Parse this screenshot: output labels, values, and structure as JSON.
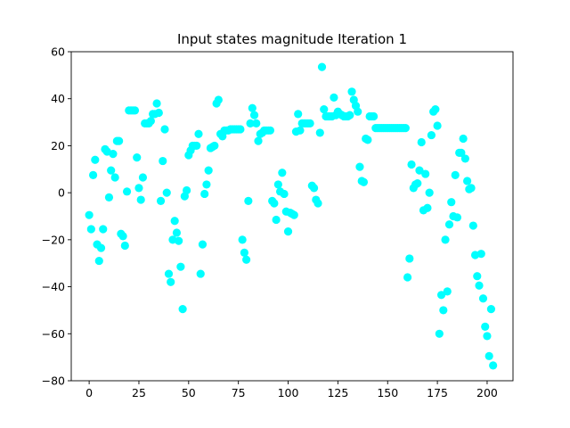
{
  "chart_data": {
    "type": "scatter",
    "title": "Input states magnitude Iteration 1",
    "xlabel": "",
    "ylabel": "",
    "xlim": [
      -9,
      213
    ],
    "ylim": [
      -80,
      60
    ],
    "xticks": [
      0,
      25,
      50,
      75,
      100,
      125,
      150,
      175,
      200
    ],
    "yticks": [
      -80,
      -60,
      -40,
      -20,
      0,
      20,
      40,
      60
    ],
    "grid": false,
    "marker_color": "#00ffff",
    "points": [
      [
        0,
        -9.5
      ],
      [
        1,
        -15.5
      ],
      [
        2,
        7.5
      ],
      [
        3,
        14
      ],
      [
        4,
        -22
      ],
      [
        5,
        -29
      ],
      [
        6,
        -23.5
      ],
      [
        7,
        -15.5
      ],
      [
        8,
        18.5
      ],
      [
        9,
        17.5
      ],
      [
        10,
        -2
      ],
      [
        11,
        9.5
      ],
      [
        12,
        16.5
      ],
      [
        13,
        6.5
      ],
      [
        14,
        22
      ],
      [
        15,
        22
      ],
      [
        16,
        -17.5
      ],
      [
        17,
        -18.5
      ],
      [
        18,
        -22.5
      ],
      [
        19,
        0.5
      ],
      [
        20,
        35
      ],
      [
        21,
        35
      ],
      [
        22,
        35
      ],
      [
        23,
        35
      ],
      [
        24,
        15
      ],
      [
        25,
        2
      ],
      [
        26,
        -3
      ],
      [
        27,
        6.5
      ],
      [
        28,
        29.5
      ],
      [
        29,
        29.5
      ],
      [
        30,
        29.5
      ],
      [
        31,
        30.5
      ],
      [
        32,
        33.5
      ],
      [
        33,
        33.5
      ],
      [
        34,
        38
      ],
      [
        35,
        34
      ],
      [
        36,
        -3.5
      ],
      [
        37,
        13.5
      ],
      [
        38,
        27
      ],
      [
        39,
        0
      ],
      [
        40,
        -34.5
      ],
      [
        41,
        -38
      ],
      [
        42,
        -20
      ],
      [
        43,
        -12
      ],
      [
        44,
        -17
      ],
      [
        45,
        -20.5
      ],
      [
        46,
        -31.5
      ],
      [
        47,
        -49.5
      ],
      [
        48,
        -1.5
      ],
      [
        49,
        1
      ],
      [
        50,
        16
      ],
      [
        51,
        18
      ],
      [
        52,
        20
      ],
      [
        53,
        20
      ],
      [
        54,
        20
      ],
      [
        55,
        25
      ],
      [
        56,
        -34.5
      ],
      [
        57,
        -22
      ],
      [
        58,
        -0.5
      ],
      [
        59,
        3.5
      ],
      [
        60,
        9.5
      ],
      [
        61,
        19
      ],
      [
        62,
        19.5
      ],
      [
        63,
        20
      ],
      [
        64,
        38
      ],
      [
        65,
        39.5
      ],
      [
        66,
        25
      ],
      [
        67,
        24
      ],
      [
        68,
        26.5
      ],
      [
        69,
        26.5
      ],
      [
        70,
        26.5
      ],
      [
        71,
        27
      ],
      [
        72,
        27
      ],
      [
        73,
        27
      ],
      [
        74,
        27
      ],
      [
        75,
        27
      ],
      [
        76,
        27
      ],
      [
        77,
        -20
      ],
      [
        78,
        -25.5
      ],
      [
        79,
        -28.5
      ],
      [
        80,
        -3.5
      ],
      [
        81,
        29.5
      ],
      [
        82,
        36
      ],
      [
        83,
        33
      ],
      [
        84,
        29.5
      ],
      [
        85,
        22
      ],
      [
        86,
        25
      ],
      [
        87,
        25.5
      ],
      [
        88,
        26.5
      ],
      [
        89,
        26.5
      ],
      [
        90,
        26.5
      ],
      [
        91,
        26.5
      ],
      [
        92,
        -3.5
      ],
      [
        93,
        -4.5
      ],
      [
        94,
        -11.5
      ],
      [
        95,
        3.5
      ],
      [
        96,
        0.5
      ],
      [
        97,
        8.5
      ],
      [
        98,
        -0.5
      ],
      [
        99,
        -8
      ],
      [
        100,
        -16.5
      ],
      [
        101,
        -8.5
      ],
      [
        102,
        -9
      ],
      [
        103,
        -9.5
      ],
      [
        104,
        26
      ],
      [
        105,
        33.5
      ],
      [
        106,
        26.5
      ],
      [
        107,
        29.5
      ],
      [
        108,
        29.5
      ],
      [
        109,
        29.5
      ],
      [
        110,
        29.5
      ],
      [
        111,
        29.5
      ],
      [
        112,
        3
      ],
      [
        113,
        2
      ],
      [
        114,
        -3
      ],
      [
        115,
        -4.5
      ],
      [
        116,
        25.5
      ],
      [
        117,
        53.5
      ],
      [
        118,
        35.5
      ],
      [
        119,
        32.5
      ],
      [
        120,
        32.5
      ],
      [
        121,
        32.5
      ],
      [
        122,
        32.5
      ],
      [
        123,
        40.5
      ],
      [
        124,
        33
      ],
      [
        125,
        34.5
      ],
      [
        126,
        33.5
      ],
      [
        127,
        33
      ],
      [
        128,
        32.5
      ],
      [
        129,
        32.5
      ],
      [
        130,
        32.5
      ],
      [
        131,
        33
      ],
      [
        132,
        43
      ],
      [
        133,
        39.5
      ],
      [
        134,
        37
      ],
      [
        135,
        34.5
      ],
      [
        136,
        11
      ],
      [
        137,
        5
      ],
      [
        138,
        4.5
      ],
      [
        139,
        23
      ],
      [
        140,
        22.5
      ],
      [
        141,
        32.5
      ],
      [
        142,
        32.5
      ],
      [
        143,
        32.5
      ],
      [
        144,
        27.5
      ],
      [
        145,
        27.5
      ],
      [
        146,
        27.5
      ],
      [
        147,
        27.5
      ],
      [
        148,
        27.5
      ],
      [
        149,
        27.5
      ],
      [
        150,
        27.5
      ],
      [
        151,
        27.5
      ],
      [
        152,
        27.5
      ],
      [
        153,
        27.5
      ],
      [
        154,
        27.5
      ],
      [
        155,
        27.5
      ],
      [
        156,
        27.5
      ],
      [
        157,
        27.5
      ],
      [
        158,
        27.5
      ],
      [
        159,
        27.5
      ],
      [
        160,
        -36
      ],
      [
        161,
        -28
      ],
      [
        162,
        12
      ],
      [
        163,
        2
      ],
      [
        164,
        3.5
      ],
      [
        165,
        4
      ],
      [
        166,
        9.5
      ],
      [
        167,
        21.5
      ],
      [
        168,
        -7.5
      ],
      [
        169,
        8
      ],
      [
        170,
        -6.5
      ],
      [
        171,
        0
      ],
      [
        172,
        24.5
      ],
      [
        173,
        34.5
      ],
      [
        174,
        35.5
      ],
      [
        175,
        28.5
      ],
      [
        176,
        -60
      ],
      [
        177,
        -43.5
      ],
      [
        178,
        -50
      ],
      [
        179,
        -20
      ],
      [
        180,
        -42
      ],
      [
        181,
        -13.5
      ],
      [
        182,
        -4
      ],
      [
        183,
        -10
      ],
      [
        184,
        7.5
      ],
      [
        185,
        -10.5
      ],
      [
        186,
        17
      ],
      [
        187,
        17
      ],
      [
        188,
        23
      ],
      [
        189,
        14.5
      ],
      [
        190,
        5
      ],
      [
        191,
        1.5
      ],
      [
        192,
        2
      ],
      [
        193,
        -14
      ],
      [
        194,
        -26.5
      ],
      [
        195,
        -35.5
      ],
      [
        196,
        -39.5
      ],
      [
        197,
        -26
      ],
      [
        198,
        -45
      ],
      [
        199,
        -57
      ],
      [
        200,
        -61
      ],
      [
        201,
        -69.5
      ],
      [
        202,
        -49.5
      ],
      [
        203,
        -73.5
      ]
    ]
  }
}
